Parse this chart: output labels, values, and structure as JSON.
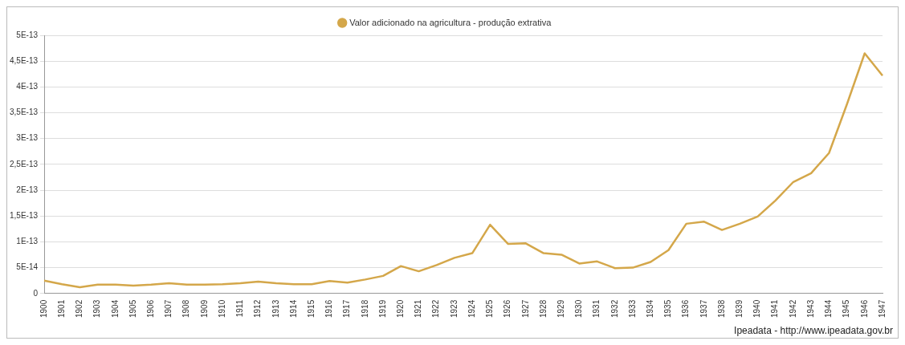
{
  "chart_data": {
    "type": "line",
    "categories": [
      "1900",
      "1901",
      "1902",
      "1903",
      "1904",
      "1905",
      "1906",
      "1907",
      "1908",
      "1909",
      "1910",
      "1911",
      "1912",
      "1913",
      "1914",
      "1915",
      "1916",
      "1917",
      "1918",
      "1919",
      "1920",
      "1921",
      "1922",
      "1923",
      "1924",
      "1925",
      "1926",
      "1927",
      "1928",
      "1929",
      "1930",
      "1931",
      "1932",
      "1933",
      "1934",
      "1935",
      "1936",
      "1937",
      "1938",
      "1939",
      "1940",
      "1941",
      "1942",
      "1943",
      "1944",
      "1945",
      "1946",
      "1947"
    ],
    "series": [
      {
        "name": "Valor adicionado na agricultura - produção extrativa",
        "color": "#d4a74a",
        "values": [
          2.5e-14,
          1.8e-14,
          1.2e-14,
          1.7e-14,
          1.7e-14,
          1.5e-14,
          1.7e-14,
          2e-14,
          1.7e-14,
          1.7e-14,
          1.8e-14,
          2e-14,
          2.3e-14,
          2e-14,
          1.8e-14,
          1.8e-14,
          2.4e-14,
          2.1e-14,
          2.7e-14,
          3.4e-14,
          5.3e-14,
          4.3e-14,
          5.5e-14,
          6.9e-14,
          7.8e-14,
          1.33e-13,
          9.6e-14,
          9.7e-14,
          7.8e-14,
          7.5e-14,
          5.8e-14,
          6.2e-14,
          4.9e-14,
          5e-14,
          6.1e-14,
          8.4e-14,
          1.35e-13,
          1.39e-13,
          1.23e-13,
          1.35e-13,
          1.49e-13,
          1.8e-13,
          2.16e-13,
          2.33e-13,
          2.72e-13,
          3.66e-13,
          4.65e-13,
          4.22e-13
        ]
      }
    ],
    "ylim": [
      0,
      5e-13
    ],
    "yticks": [
      {
        "value": 0,
        "label": "0"
      },
      {
        "value": 5e-14,
        "label": "5E-14"
      },
      {
        "value": 1e-13,
        "label": "1E-13"
      },
      {
        "value": 1.5e-13,
        "label": "1,5E-13"
      },
      {
        "value": 2e-13,
        "label": "2E-13"
      },
      {
        "value": 2.5e-13,
        "label": "2,5E-13"
      },
      {
        "value": 3e-13,
        "label": "3E-13"
      },
      {
        "value": 3.5e-13,
        "label": "3,5E-13"
      },
      {
        "value": 4e-13,
        "label": "4E-13"
      },
      {
        "value": 4.5e-13,
        "label": "4,5E-13"
      },
      {
        "value": 5e-13,
        "label": "5E-13"
      }
    ],
    "grid": "y",
    "legend": "top",
    "annotations": [
      "Ipeadata - http://www.ipeadata.gov.br"
    ]
  }
}
